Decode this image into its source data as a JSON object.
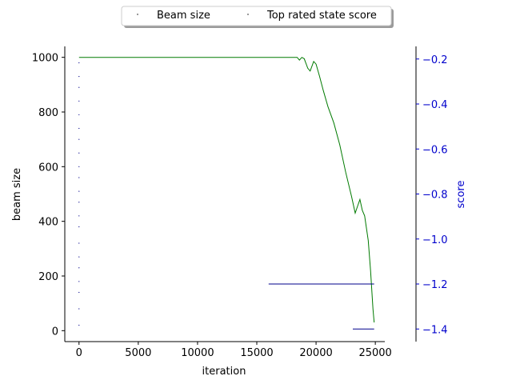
{
  "chart_data": {
    "type": "line",
    "xlabel": "iteration",
    "ylabel": "beam size",
    "ylabel_right": "score",
    "xlim": [
      -1200,
      25800
    ],
    "ylim": [
      -40,
      1040
    ],
    "ylim_right": [
      -1.456,
      -0.144
    ],
    "xticks": [
      "0",
      "5000",
      "10000",
      "15000",
      "20000",
      "25000"
    ],
    "yticks": [
      "0",
      "200",
      "400",
      "600",
      "800",
      "1000"
    ],
    "yticks_right": [
      "-0.2",
      "-0.4",
      "-0.6",
      "-0.8",
      "-1.0",
      "-1.2",
      "-1.4"
    ],
    "legend_position": "top-center",
    "colors": {
      "beam": "#007a00",
      "score": "#00008b",
      "right_axis": "#0000cc"
    },
    "series": [
      {
        "name": "Beam size",
        "axis": "left",
        "color": "#007a00",
        "x": [
          0,
          5000,
          10000,
          16000,
          18000,
          18400,
          18600,
          18800,
          19000,
          19300,
          19500,
          19800,
          20000,
          20300,
          20600,
          21000,
          21500,
          22000,
          22500,
          23000,
          23300,
          23500,
          23700,
          23900,
          24100,
          24400,
          24600,
          24800,
          24900
        ],
        "y": [
          1000,
          1000,
          1000,
          1000,
          1000,
          1000,
          990,
          1000,
          995,
          960,
          950,
          985,
          975,
          930,
          880,
          820,
          760,
          680,
          580,
          490,
          430,
          455,
          480,
          440,
          420,
          330,
          220,
          80,
          30
        ]
      },
      {
        "name": "Top rated state score",
        "axis": "right",
        "color": "#00008b",
        "x": [
          16000,
          17000,
          18000,
          19000,
          20000,
          21000,
          22000,
          23000,
          23700,
          24000,
          24500,
          24900
        ],
        "y": [
          -1.2,
          -1.2,
          -1.2,
          -1.2,
          -1.2,
          -1.2,
          -1.2,
          -1.2,
          -1.2,
          -1.2,
          -1.2,
          -1.2
        ]
      },
      {
        "name": "",
        "axis": "right",
        "color": "#00008b",
        "x": [
          23100,
          23600,
          24100,
          24600,
          24900
        ],
        "y": [
          -1.4,
          -1.4,
          -1.4,
          -1.4,
          -1.4
        ]
      },
      {
        "name": "",
        "axis": "left",
        "color": "#00008b",
        "x": [
          0,
          0,
          0,
          0,
          0,
          0,
          0,
          0,
          0,
          0,
          0,
          0,
          0,
          0,
          0,
          0,
          0,
          0,
          0,
          0,
          0
        ],
        "y": [
          20,
          80,
          140,
          180,
          230,
          270,
          320,
          380,
          420,
          470,
          510,
          560,
          600,
          650,
          700,
          740,
          790,
          840,
          890,
          930,
          980
        ]
      }
    ]
  }
}
